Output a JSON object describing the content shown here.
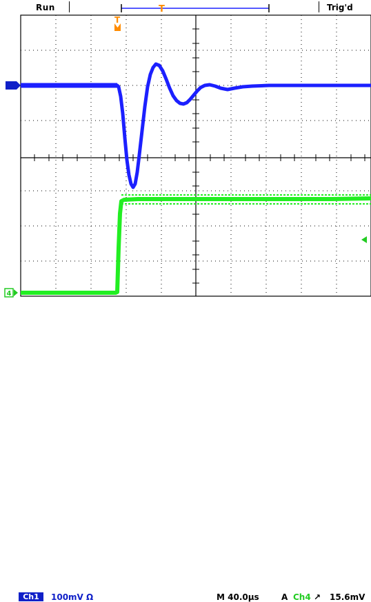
{
  "status": {
    "run": "Run",
    "trigger_state": "Trig'd"
  },
  "markers": {
    "trigger_position": "T",
    "ch1_ground": "1",
    "ch4_ground": "4",
    "trigger_level": "1"
  },
  "footer": {
    "ch1_label": "Ch1",
    "ch1_scale": "100mV Ω",
    "timebase": "M 40.0µs",
    "trigger_mode": "A",
    "trigger_source": "Ch4",
    "trigger_slope": "↗",
    "trigger_level": "15.6mV"
  },
  "colors": {
    "ch1_trace": "#1c20ff",
    "ch4_trace": "#22ee22",
    "grid": "#000000",
    "orange_marker": "#ff8c00",
    "ch1_badge": "#1020c8"
  }
}
